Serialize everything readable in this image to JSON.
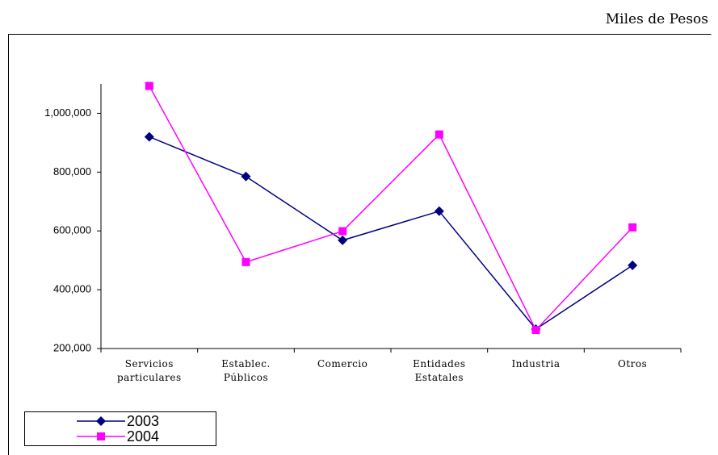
{
  "chart_data": {
    "type": "line",
    "unit_label": "Miles de Pesos",
    "categories": [
      "Servicios particulares",
      "Establec. Públicos",
      "Comercio",
      "Entidades Estatales",
      "Industria",
      "Otros"
    ],
    "series": [
      {
        "name": "2003",
        "color": "#000080",
        "marker": "diamond",
        "values": [
          920000,
          785000,
          568000,
          667000,
          266000,
          483000
        ]
      },
      {
        "name": "2004",
        "color": "#ff00ff",
        "marker": "square",
        "values": [
          1093000,
          494000,
          599000,
          928000,
          263000,
          612000
        ]
      }
    ],
    "ylim": [
      200000,
      1100000
    ],
    "yticks": [
      {
        "value": 200000,
        "label": "200,000"
      },
      {
        "value": 400000,
        "label": "400,000"
      },
      {
        "value": 600000,
        "label": "600,000"
      },
      {
        "value": 800000,
        "label": "800,000"
      },
      {
        "value": 1000000,
        "label": "1,000,000"
      }
    ],
    "legend": "bottom-left"
  }
}
